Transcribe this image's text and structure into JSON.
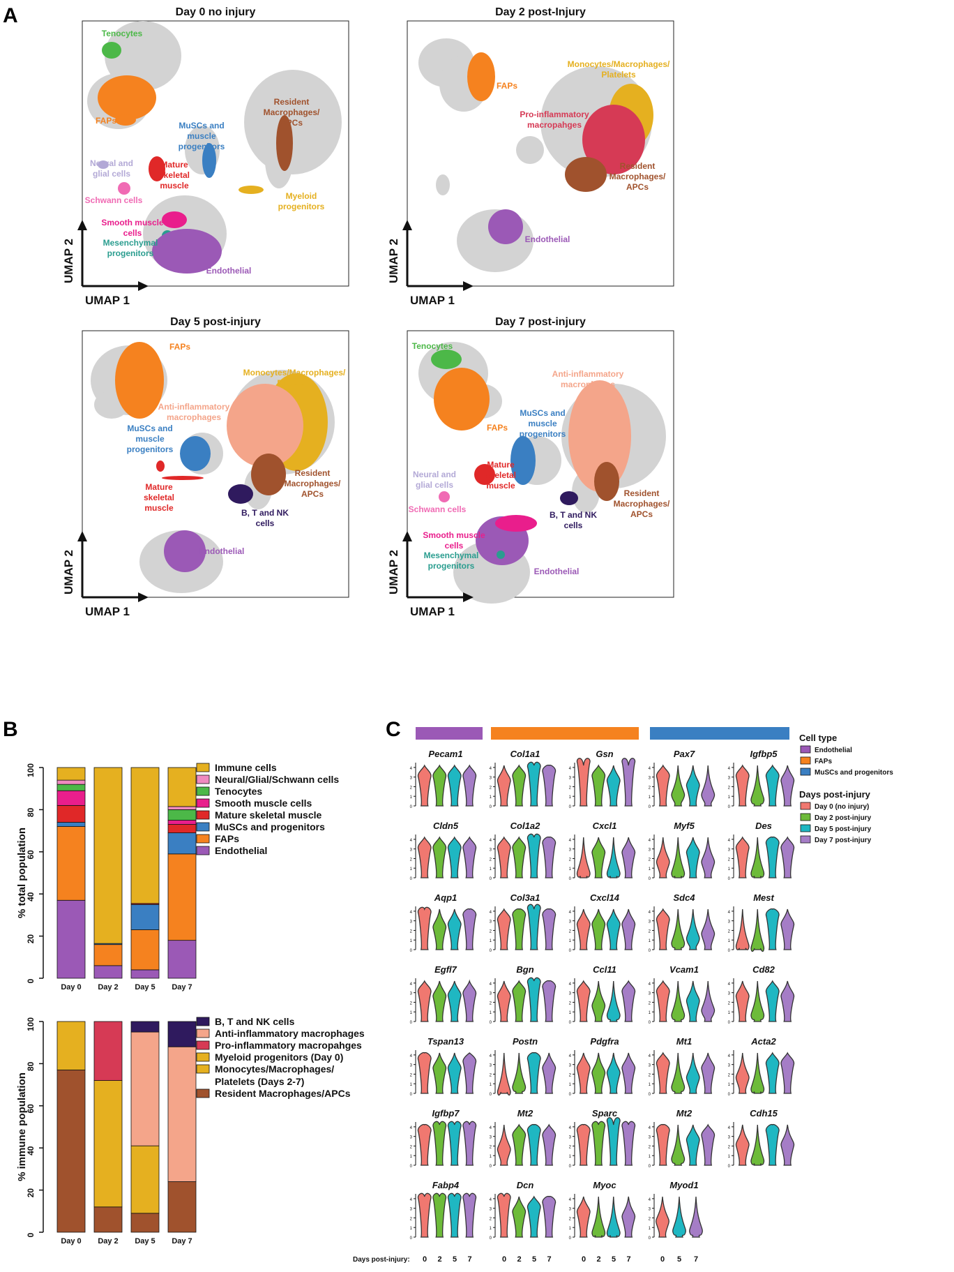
{
  "panel_letters": {
    "a": "A",
    "b": "B",
    "c": "C"
  },
  "colors": {
    "cell_gray": "#d3d3d3",
    "endothelial": "#9b59b6",
    "faps": "#f5821f",
    "muscs": "#3a7fc2",
    "tenocytes": "#4cb848",
    "mature_muscle": "#e02828",
    "smooth_muscle": "#e91e8c",
    "mesenchymal": "#2a9d8f",
    "neural": "#b3a9d6",
    "schwann": "#f06bb4",
    "myeloid": "#e5b020",
    "monocytes": "#e5b020",
    "resident": "#a0522d",
    "pro_inflam": "#d63a55",
    "anti_inflam": "#f4a58a",
    "btnk": "#2f1a5e",
    "immune": "#e5b020",
    "neural_glial_schwann": "#f08ac0",
    "day0": "#f07870",
    "day2": "#6dbb3a",
    "day5": "#1fb7c2",
    "day7": "#a57dc6"
  },
  "umap": {
    "x_axis": "UMAP 1",
    "y_axis": "UMAP 2",
    "panels": [
      {
        "title": "Day 0 no injury",
        "labels": [
          {
            "text": "Tenocytes",
            "key": "tenocytes"
          },
          {
            "text": "FAPs",
            "key": "faps"
          },
          {
            "text": "MuSCs and muscle progenitors",
            "key": "muscs"
          },
          {
            "text": "Resident Macrophages/ APCs",
            "key": "resident"
          },
          {
            "text": "Neural and glial cells",
            "key": "neural"
          },
          {
            "text": "Mature skeletal muscle",
            "key": "mature_muscle"
          },
          {
            "text": "Schwann cells",
            "key": "schwann"
          },
          {
            "text": "Myeloid progenitors",
            "key": "myeloid"
          },
          {
            "text": "Smooth muscle cells",
            "key": "smooth_muscle"
          },
          {
            "text": "Mesenchymal progenitors",
            "key": "mesenchymal"
          },
          {
            "text": "Endothelial",
            "key": "endothelial"
          }
        ]
      },
      {
        "title": "Day 2 post-Injury",
        "labels": [
          {
            "text": "FAPs",
            "key": "faps"
          },
          {
            "text": "Monocytes/Macrophages/ Platelets",
            "key": "monocytes"
          },
          {
            "text": "Pro-inflammatory macropahges",
            "key": "pro_inflam"
          },
          {
            "text": "Resident Macrophages/ APCs",
            "key": "resident"
          },
          {
            "text": "Endothelial",
            "key": "endothelial"
          }
        ]
      },
      {
        "title": "Day 5 post-injury",
        "labels": [
          {
            "text": "FAPs",
            "key": "faps"
          },
          {
            "text": "Monocytes/Macrophages/ Platelets",
            "key": "monocytes"
          },
          {
            "text": "Anti-inflammatory macrophages",
            "key": "anti_inflam"
          },
          {
            "text": "MuSCs and muscle progenitors",
            "key": "muscs"
          },
          {
            "text": "Resident Macrophages/ APCs",
            "key": "resident"
          },
          {
            "text": "Mature skeletal muscle",
            "key": "mature_muscle"
          },
          {
            "text": "B, T and NK cells",
            "key": "btnk"
          },
          {
            "text": "Endothelial",
            "key": "endothelial"
          }
        ]
      },
      {
        "title": "Day 7 post-injury",
        "labels": [
          {
            "text": "Tenocytes",
            "key": "tenocytes"
          },
          {
            "text": "Anti-inflammatory macrophages",
            "key": "anti_inflam"
          },
          {
            "text": "FAPs",
            "key": "faps"
          },
          {
            "text": "MuSCs and muscle progenitors",
            "key": "muscs"
          },
          {
            "text": "Neural and glial cells",
            "key": "neural"
          },
          {
            "text": "Mature skeletal muscle",
            "key": "mature_muscle"
          },
          {
            "text": "Resident Macrophages/ APCs",
            "key": "resident"
          },
          {
            "text": "Schwann cells",
            "key": "schwann"
          },
          {
            "text": "B, T and NK cells",
            "key": "btnk"
          },
          {
            "text": "Smooth muscle cells",
            "key": "smooth_muscle"
          },
          {
            "text": "Mesenchymal progenitors",
            "key": "mesenchymal"
          },
          {
            "text": "Endothelial",
            "key": "endothelial"
          }
        ]
      }
    ]
  },
  "chart_data": [
    {
      "type": "bar",
      "stacked": true,
      "ylabel": "% total population",
      "ylim": [
        0,
        100
      ],
      "yticks": [
        0,
        20,
        40,
        60,
        80,
        100
      ],
      "categories": [
        "Day 0",
        "Day 2",
        "Day 5",
        "Day 7"
      ],
      "series": [
        {
          "name": "Endothelial",
          "key": "endothelial",
          "values": [
            37,
            6,
            4,
            18
          ]
        },
        {
          "name": "FAPs",
          "key": "faps",
          "values": [
            35,
            10,
            19,
            41
          ]
        },
        {
          "name": "MuSCs and progenitors",
          "key": "muscs",
          "values": [
            2,
            0.5,
            12,
            10
          ]
        },
        {
          "name": "Mature skeletal muscle",
          "key": "mature_muscle",
          "values": [
            8,
            0,
            0.5,
            4
          ]
        },
        {
          "name": "Smooth muscle cells",
          "key": "smooth_muscle",
          "values": [
            7,
            0,
            0,
            2
          ]
        },
        {
          "name": "Tenocytes",
          "key": "tenocytes",
          "values": [
            3,
            0,
            0,
            5
          ]
        },
        {
          "name": "Neural/Glial/Schwann cells",
          "key": "neural_glial_schwann",
          "values": [
            2,
            0,
            0,
            1.5
          ]
        },
        {
          "name": "Immune cells",
          "key": "immune",
          "values": [
            6,
            83.5,
            64.5,
            18.5
          ]
        }
      ],
      "legend": [
        "Immune cells",
        "Neural/Glial/Schwann cells",
        "Tenocytes",
        "Smooth muscle cells",
        "Mature skeletal muscle",
        "MuSCs and progenitors",
        "FAPs",
        "Endothelial"
      ]
    },
    {
      "type": "bar",
      "stacked": true,
      "ylabel": "% immune population",
      "ylim": [
        0,
        100
      ],
      "yticks": [
        0,
        20,
        40,
        60,
        80,
        100
      ],
      "categories": [
        "Day 0",
        "Day 2",
        "Day 5",
        "Day 7"
      ],
      "series": [
        {
          "name": "Resident Macrophages/APCs",
          "key": "resident",
          "values": [
            77,
            12,
            9,
            24
          ]
        },
        {
          "name": "Monocytes/Macrophages/ Platelets (Days 2-7)",
          "key": "monocytes",
          "values": [
            0,
            60,
            32,
            0
          ]
        },
        {
          "name": "Myeloid progenitors (Day 0)",
          "key": "myeloid",
          "values": [
            23,
            0,
            0,
            0
          ]
        },
        {
          "name": "Pro-inflammatory macropahges",
          "key": "pro_inflam",
          "values": [
            0,
            28,
            0,
            0
          ]
        },
        {
          "name": "Anti-inflammatory macrophages",
          "key": "anti_inflam",
          "values": [
            0,
            0,
            54,
            64
          ]
        },
        {
          "name": "B, T and NK cells",
          "key": "btnk",
          "values": [
            0,
            0,
            5,
            12
          ]
        }
      ],
      "legend": [
        "B, T and NK cells",
        "Anti-inflammatory macrophages",
        "Pro-inflammatory macropahges",
        "Myeloid progenitors (Day 0)",
        "Monocytes/Macrophages/ Platelets (Days 2-7)",
        "Resident Macrophages/APCs"
      ]
    },
    {
      "type": "violin",
      "y_ticks": [
        0,
        1,
        2,
        3,
        4
      ],
      "x_axis_label": "Days post-injury:",
      "day_ticks": [
        "0",
        "2",
        "5",
        "7"
      ],
      "cell_type_legend_title": "Cell type",
      "cell_types": [
        {
          "name": "Endothelial",
          "key": "endothelial"
        },
        {
          "name": "FAPs",
          "key": "faps"
        },
        {
          "name": "MuSCs and progenitors",
          "key": "muscs"
        }
      ],
      "days_legend_title": "Days post-injury",
      "days": [
        {
          "name": "Day 0 (no injury)",
          "key": "day0"
        },
        {
          "name": "Day 2 post-injury",
          "key": "day2"
        },
        {
          "name": "Day 5 post-injury",
          "key": "day5"
        },
        {
          "name": "Day 7 post-injury",
          "key": "day7"
        }
      ],
      "columns": [
        {
          "group": "endothelial",
          "genes": [
            {
              "name": "Pecam1",
              "medians": [
                3,
                3,
                3,
                3
              ]
            },
            {
              "name": "Cldn5",
              "medians": [
                3,
                3,
                3,
                3
              ]
            },
            {
              "name": "Aqp1",
              "medians": [
                3.8,
                2.2,
                2.5,
                3.5
              ]
            },
            {
              "name": "Egfl7",
              "medians": [
                3,
                2.5,
                2.6,
                2.8
              ]
            },
            {
              "name": "Tspan13",
              "medians": [
                3.5,
                2.5,
                2.5,
                3.2
              ]
            },
            {
              "name": "Igfbp7",
              "medians": [
                3.5,
                4,
                4,
                4
              ]
            },
            {
              "name": "Fabp4",
              "medians": [
                4,
                4,
                4,
                4
              ]
            }
          ]
        },
        {
          "group": "faps",
          "genes": [
            {
              "name": "Col1a1",
              "medians": [
                2.5,
                3,
                4,
                3.5
              ]
            },
            {
              "name": "Col1a2",
              "medians": [
                3,
                3,
                4,
                3.5
              ]
            },
            {
              "name": "Col3a1",
              "medians": [
                3,
                3.5,
                4.2,
                3.5
              ]
            },
            {
              "name": "Bgn",
              "medians": [
                2.5,
                3,
                4,
                3.5
              ]
            },
            {
              "name": "Postn",
              "medians": [
                0,
                0.5,
                3.5,
                2.5
              ]
            },
            {
              "name": "Mt2",
              "medians": [
                1.5,
                3,
                3.5,
                3
              ]
            },
            {
              "name": "Dcn",
              "medians": [
                4,
                2.5,
                3,
                3.5
              ]
            }
          ]
        },
        {
          "group": "faps",
          "genes": [
            {
              "name": "Gsn",
              "medians": [
                4.5,
                3,
                2.5,
                4.5
              ]
            },
            {
              "name": "Cxcl1",
              "medians": [
                0.3,
                2.5,
                0.3,
                2.5
              ]
            },
            {
              "name": "Cxcl14",
              "medians": [
                2.5,
                2.5,
                2.5,
                2.5
              ]
            },
            {
              "name": "Ccl11",
              "medians": [
                3,
                1.5,
                0.5,
                3
              ]
            },
            {
              "name": "Pdgfra",
              "medians": [
                2.5,
                2,
                2,
                2.5
              ]
            },
            {
              "name": "Sparc",
              "medians": [
                3.5,
                4,
                4.5,
                4
              ]
            },
            {
              "name": "Myoc",
              "medians": [
                2.5,
                0.3,
                0.3,
                2
              ]
            }
          ]
        },
        {
          "group": "muscs",
          "genes": [
            {
              "name": "Pax7",
              "medians": [
                3,
                1,
                2,
                1
              ]
            },
            {
              "name": "Myf5",
              "medians": [
                1.5,
                0.3,
                2.5,
                1.5
              ]
            },
            {
              "name": "Sdc4",
              "medians": [
                3,
                0.5,
                1,
                1.5
              ]
            },
            {
              "name": "Vcam1",
              "medians": [
                3,
                0.5,
                2,
                1
              ]
            },
            {
              "name": "Mt1",
              "medians": [
                3,
                0.5,
                1.5,
                2.5
              ]
            },
            {
              "name": "Mt2",
              "medians": [
                3.5,
                0.5,
                2.5,
                3
              ]
            },
            {
              "name": "Myod1",
              "medians": [
                1.5,
                0,
                0.5,
                0.5
              ]
            }
          ]
        },
        {
          "group": "muscs",
          "genes": [
            {
              "name": "Igfbp5",
              "medians": [
                3,
                0.5,
                3,
                2.5
              ]
            },
            {
              "name": "Des",
              "medians": [
                3,
                0.3,
                3.5,
                3
              ]
            },
            {
              "name": "Mest",
              "medians": [
                0.2,
                0,
                3.5,
                2.5
              ]
            },
            {
              "name": "Cd82",
              "medians": [
                2.5,
                0.5,
                3,
                2.5
              ]
            },
            {
              "name": "Acta2",
              "medians": [
                1.5,
                0.3,
                3,
                3
              ]
            },
            {
              "name": "Cdh15",
              "medians": [
                2,
                0.3,
                3.5,
                2
              ]
            }
          ]
        }
      ]
    }
  ]
}
